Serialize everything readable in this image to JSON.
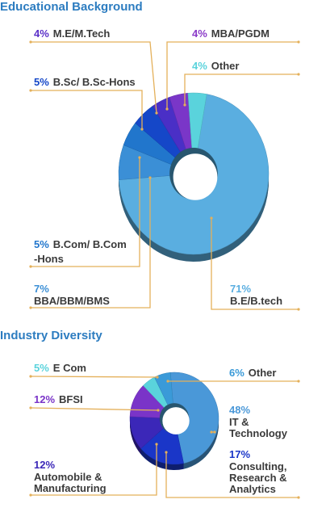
{
  "chart_data": [
    {
      "type": "pie",
      "variant": "3d-donut",
      "title": "Educational Background",
      "slices": [
        {
          "name": "B.E/B.tech",
          "value": 71,
          "label_lines": [
            "B.E/B.tech"
          ],
          "color": "#5aaee0"
        },
        {
          "name": "BBA/BBM/BMS",
          "value": 7,
          "label_lines": [
            "BBA/BBM/BMS"
          ],
          "color": "#3b8fd6"
        },
        {
          "name": "B.Com/ B.Com -Hons",
          "value": 5,
          "label_lines": [
            "B.Com/ B.Com",
            "-Hons"
          ],
          "color": "#2176cc"
        },
        {
          "name": "B.Sc/ B.Sc-Hons",
          "value": 5,
          "label_lines": [
            "B.Sc/ B.Sc-Hons"
          ],
          "color": "#1547c8"
        },
        {
          "name": "M.E/M.Tech",
          "value": 4,
          "label_lines": [
            "M.E/M.Tech"
          ],
          "color": "#4a2fc6"
        },
        {
          "name": "MBA/PGDM",
          "value": 4,
          "label_lines": [
            "MBA/PGDM"
          ],
          "color": "#7a36c8"
        },
        {
          "name": "Other",
          "value": 4,
          "label_lines": [
            "Other"
          ],
          "color": "#5ad3dc"
        }
      ]
    },
    {
      "type": "pie",
      "variant": "3d-donut",
      "title": "Industry Diversity",
      "slices": [
        {
          "name": "IT & Technology",
          "value": 48,
          "label_lines": [
            "IT &",
            "Technology"
          ],
          "color": "#4a98d8"
        },
        {
          "name": "Consulting, Research & Analytics",
          "value": 17,
          "label_lines": [
            "Consulting,",
            "Research &",
            "Analytics"
          ],
          "color": "#1a36c8"
        },
        {
          "name": "Automobile & Manufacturing",
          "value": 12,
          "label_lines": [
            "Automobile &",
            "Manufacturing"
          ],
          "color": "#3b27b8"
        },
        {
          "name": "BFSI",
          "value": 12,
          "label_lines": [
            "BFSI"
          ],
          "color": "#7a34c8"
        },
        {
          "name": "E Com",
          "value": 5,
          "label_lines": [
            "E Com"
          ],
          "color": "#5ad3dc"
        },
        {
          "name": "Other",
          "value": 6,
          "label_lines": [
            "Other"
          ],
          "color": "#3a9ad8"
        }
      ]
    }
  ],
  "colors": {
    "title": "#2c7cc0",
    "leader": "#e4b05a",
    "label_text": "#3a3a3a"
  }
}
